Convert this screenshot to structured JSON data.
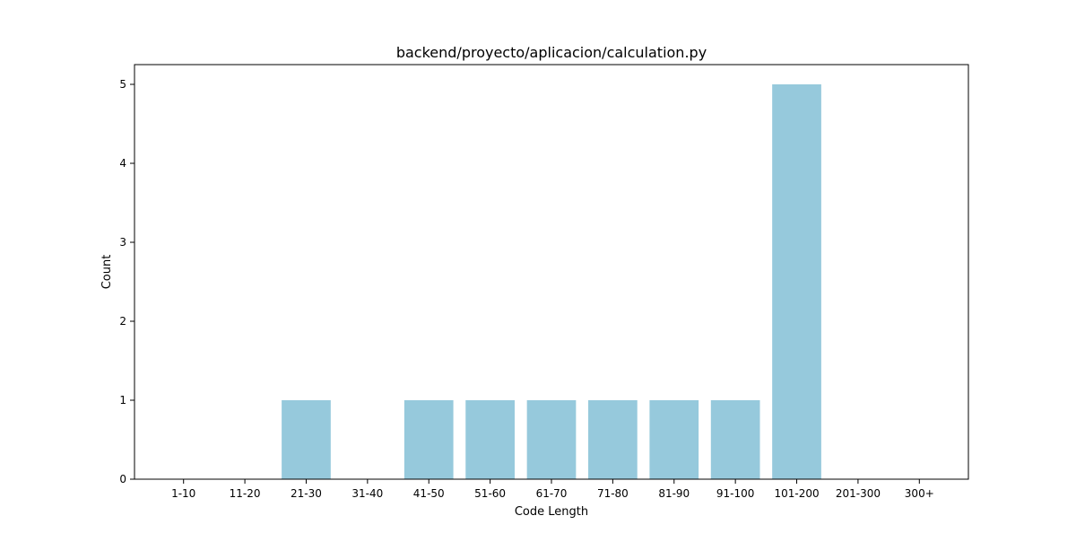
{
  "chart_data": {
    "type": "bar",
    "title": "backend/proyecto/aplicacion/calculation.py",
    "xlabel": "Code Length",
    "ylabel": "Count",
    "categories": [
      "1-10",
      "11-20",
      "21-30",
      "31-40",
      "41-50",
      "51-60",
      "61-70",
      "71-80",
      "81-90",
      "91-100",
      "101-200",
      "201-300",
      "300+"
    ],
    "values": [
      0,
      0,
      1,
      0,
      1,
      1,
      1,
      1,
      1,
      1,
      5,
      0,
      0
    ],
    "ylim": [
      0,
      5.25
    ],
    "yticks": [
      0,
      1,
      2,
      3,
      4,
      5
    ],
    "bar_color": "#96c9dc",
    "grid": false,
    "legend": "none"
  }
}
